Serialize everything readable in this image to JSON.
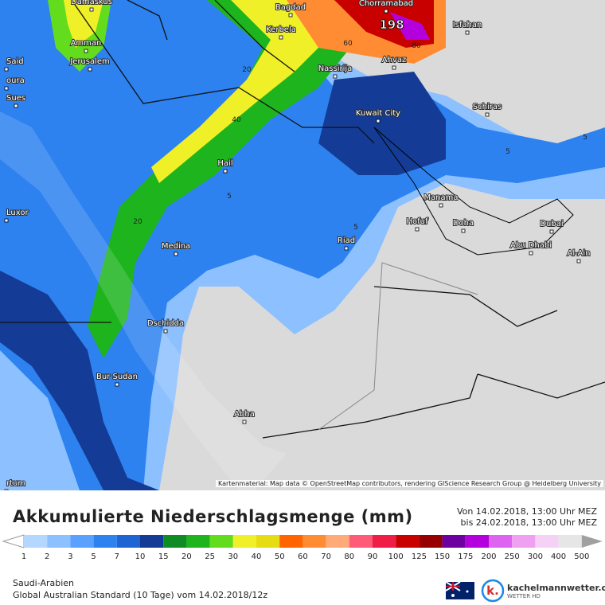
{
  "header": {
    "title": "Akkumulierte Niederschlagsmenge (mm)",
    "from": "Von 14.02.2018, 13:00 Uhr MEZ",
    "to": "bis 24.02.2018, 13:00 Uhr MEZ"
  },
  "map": {
    "cities": [
      "Damaskus",
      "Bagdad",
      "Chorramabad",
      "Isfahan",
      "Kerbela",
      "Said",
      "Amman",
      "Jerusalem",
      "Ahvaz",
      "Nassirija",
      "oura",
      "Sues",
      "Schiras",
      "Kuwait City",
      "Hail",
      "Manama",
      "Luxor",
      "Hofuf",
      "Doha",
      "Dubai",
      "Riad",
      "Abu Dhabi",
      "Medina",
      "Al-Ain",
      "Dschidda",
      "Bur Sudan",
      "Abha",
      "rtum"
    ],
    "max_label": "198",
    "contour_labels": [
      "60",
      "80",
      "20",
      "40",
      "5",
      "20",
      "5",
      "5",
      "5"
    ],
    "attribution": "Kartenmaterial: Map data © OpenStreetMap contributors, rendering GIScience Research Group @ Heidelberg University"
  },
  "legend": {
    "labels": [
      1,
      2,
      3,
      5,
      7,
      10,
      15,
      20,
      25,
      30,
      40,
      50,
      60,
      70,
      80,
      90,
      100,
      125,
      150,
      175,
      200,
      250,
      300,
      400,
      500
    ],
    "colors": [
      "#ffffff",
      "#b4d7ff",
      "#8cc0ff",
      "#5aa0ff",
      "#2d82f0",
      "#1e64d2",
      "#143c96",
      "#0f8c23",
      "#1eb41e",
      "#64dc1e",
      "#f0f028",
      "#e6dc14",
      "#ff6400",
      "#ff8c32",
      "#ffaa78",
      "#ff5a78",
      "#f01e46",
      "#c80000",
      "#960000",
      "#6e00a0",
      "#b400dc",
      "#dc64f0",
      "#f0a0f0",
      "#f5d2f5",
      "#e6e6e6",
      "#a0a0a0"
    ]
  },
  "footer": {
    "region": "Saudi-Arabien",
    "model": "Global Australian Standard (10 Tage) vom 14.02.2018/12z",
    "brand": "kachelmannwetter.com",
    "brand_sub": "WETTER HD"
  }
}
